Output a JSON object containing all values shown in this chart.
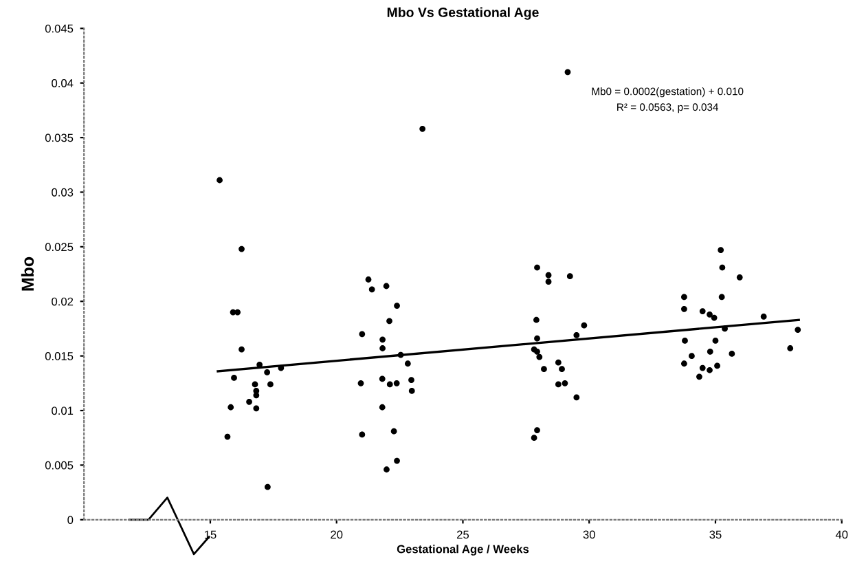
{
  "chart_data": {
    "type": "scatter",
    "title": "Mbo Vs Gestational Age",
    "xlabel": "Gestational Age / Weeks",
    "ylabel": "Mbo",
    "annotations": [
      "Mb0 = 0.0002(gestation) + 0.010",
      "R² = 0.0563, p= 0.034"
    ],
    "xlim": [
      10,
      40
    ],
    "xticks": [
      15,
      20,
      25,
      30,
      35,
      40
    ],
    "ylim": [
      0,
      0.045
    ],
    "yticks": [
      0,
      0.005,
      0.01,
      0.015,
      0.02,
      0.025,
      0.03,
      0.035,
      0.04,
      0.045
    ],
    "grid": false,
    "legend": false,
    "series": [
      {
        "color": "#000000",
        "marker": "circle",
        "x": [
          15.37,
          16.24,
          15.9,
          16.08,
          16.24,
          16.95,
          17.25,
          17.8,
          15.94,
          16.77,
          17.38,
          16.82,
          16.82,
          16.54,
          16.82,
          15.81,
          15.68,
          17.27,
          21.26,
          21.4,
          21.97,
          22.39,
          22.09,
          21.01,
          21.82,
          21.82,
          22.54,
          22.82,
          20.96,
          21.81,
          22.11,
          22.38,
          22.96,
          22.98,
          21.81,
          21.01,
          22.27,
          22.39,
          21.98,
          23.4,
          29.15,
          27.94,
          28.39,
          28.39,
          29.24,
          27.91,
          29.8,
          27.94,
          29.5,
          27.82,
          27.94,
          28.03,
          28.21,
          28.78,
          28.92,
          28.78,
          29.04,
          29.5,
          27.94,
          27.82,
          35.21,
          35.27,
          35.96,
          33.76,
          35.25,
          33.76,
          34.49,
          34.77,
          34.95,
          36.91,
          35.37,
          38.26,
          33.79,
          35.0,
          35.65,
          34.06,
          34.79,
          37.96,
          33.76,
          34.49,
          34.77,
          35.07,
          34.36
        ],
        "values": [
          0.0311,
          0.0248,
          0.019,
          0.019,
          0.0156,
          0.0142,
          0.0135,
          0.0139,
          0.013,
          0.0124,
          0.0124,
          0.0118,
          0.0114,
          0.0108,
          0.0102,
          0.0103,
          0.0076,
          0.003,
          0.022,
          0.0211,
          0.0214,
          0.0196,
          0.0182,
          0.017,
          0.0165,
          0.0157,
          0.0151,
          0.0143,
          0.0125,
          0.0129,
          0.0124,
          0.0125,
          0.0128,
          0.0118,
          0.0103,
          0.0078,
          0.0081,
          0.0054,
          0.0046,
          0.0358,
          0.041,
          0.0231,
          0.0224,
          0.0218,
          0.0223,
          0.0183,
          0.0178,
          0.0166,
          0.0169,
          0.0156,
          0.0154,
          0.0149,
          0.0138,
          0.0144,
          0.0138,
          0.0124,
          0.0125,
          0.0112,
          0.0082,
          0.0075,
          0.0247,
          0.0231,
          0.0222,
          0.0204,
          0.0204,
          0.0193,
          0.0191,
          0.0188,
          0.0185,
          0.0186,
          0.0175,
          0.0174,
          0.0164,
          0.0164,
          0.0152,
          0.015,
          0.0154,
          0.0157,
          0.0143,
          0.0139,
          0.0137,
          0.0141,
          0.0131
        ]
      },
      {
        "type": "line",
        "color": "#000000",
        "marker": "none",
        "line_style": "solid",
        "x": [
          15.3,
          38.3
        ],
        "values": [
          0.0136,
          0.0183
        ]
      }
    ]
  }
}
